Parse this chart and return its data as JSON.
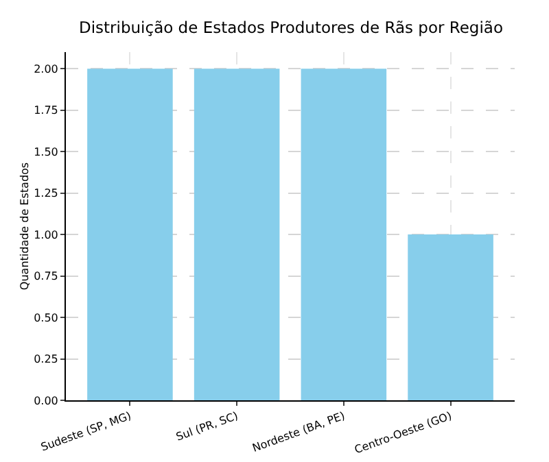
{
  "chart_data": {
    "type": "bar",
    "title": "Distribuição de Estados Produtores de Rãs por Região",
    "ylabel": "Quantidade de Estados",
    "categories": [
      "Sudeste (SP, MG)",
      "Sul (PR, SC)",
      "Nordeste (BA, PE)",
      "Centro-Oeste (GO)"
    ],
    "values": [
      2,
      2,
      2,
      1
    ],
    "color": "#87ceeb",
    "ylim": [
      0,
      2.1
    ],
    "yticks": [
      {
        "value": 0,
        "label": "0.00"
      },
      {
        "value": 0.25,
        "label": "0.25"
      },
      {
        "value": 0.5,
        "label": "0.50"
      },
      {
        "value": 0.75,
        "label": "0.75"
      },
      {
        "value": 1,
        "label": "1.00"
      },
      {
        "value": 1.25,
        "label": "1.25"
      },
      {
        "value": 1.5,
        "label": "1.50"
      },
      {
        "value": 1.75,
        "label": "1.75"
      },
      {
        "value": 2,
        "label": "2.00"
      }
    ],
    "grid": true
  }
}
